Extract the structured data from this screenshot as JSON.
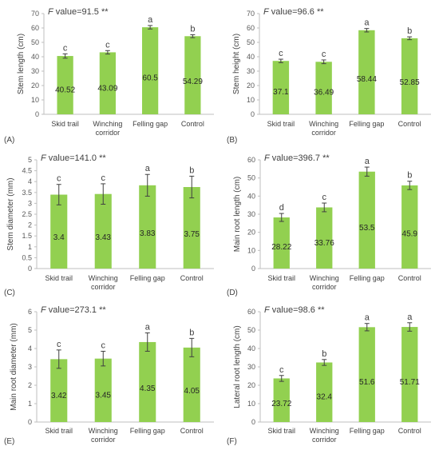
{
  "colors": {
    "bar": "#92D050",
    "axis": "#bfbfbf",
    "grid": "#d9d9d9",
    "error": "#404040"
  },
  "chart_data": [
    {
      "type": "bar",
      "panel": "(A)",
      "categories": [
        "Skid trail",
        "Winching corridor",
        "Felling gap",
        "Control"
      ],
      "values": [
        40.52,
        43.09,
        60.5,
        54.29
      ],
      "value_labels": [
        "40.52",
        "43.09",
        "60.5",
        "54.29"
      ],
      "errors": [
        1.5,
        1.2,
        1.2,
        1.0
      ],
      "significance": [
        "c",
        "c",
        "a",
        "b"
      ],
      "f_label": "F",
      "f_text": " value=91.5 **",
      "ylabel": "Stem length (cm)",
      "ylim": [
        0,
        70
      ],
      "yticks": [
        0,
        10,
        20,
        30,
        40,
        50,
        60,
        70
      ],
      "grid": false
    },
    {
      "type": "bar",
      "panel": "(B)",
      "categories": [
        "Skid trail",
        "Winching corridor",
        "Felling gap",
        "Control"
      ],
      "values": [
        37.1,
        36.49,
        58.44,
        52.85
      ],
      "value_labels": [
        "37.1",
        "36.49",
        "58.44",
        "52.85"
      ],
      "errors": [
        1.2,
        1.3,
        1.2,
        1.0
      ],
      "significance": [
        "c",
        "c",
        "a",
        "b"
      ],
      "f_label": "F",
      "f_text": " value=96.6 **",
      "ylabel": "Stem height (cm)",
      "ylim": [
        0,
        70
      ],
      "yticks": [
        0,
        10,
        20,
        30,
        40,
        50,
        60,
        70
      ],
      "grid": false
    },
    {
      "type": "bar",
      "panel": "(C)",
      "categories": [
        "Skid trail",
        "Winching corridor",
        "Felling gap",
        "Control"
      ],
      "values": [
        3.4,
        3.43,
        3.83,
        3.75
      ],
      "value_labels": [
        "3.4",
        "3.43",
        "3.83",
        "3.75"
      ],
      "errors": [
        0.47,
        0.47,
        0.5,
        0.5
      ],
      "significance": [
        "c",
        "c",
        "a",
        "b"
      ],
      "f_label": "F",
      "f_text": " value=141.0 **",
      "ylabel": "Stem diameter (mm)",
      "ylim": [
        0,
        5
      ],
      "yticks": [
        0,
        0.5,
        1,
        1.5,
        2,
        2.5,
        3,
        3.5,
        4,
        4.5,
        5
      ],
      "grid": false
    },
    {
      "type": "bar",
      "panel": "(D)",
      "categories": [
        "Skid trail",
        "Winching corridor",
        "Felling gap",
        "Control"
      ],
      "values": [
        28.22,
        33.76,
        53.5,
        45.9
      ],
      "value_labels": [
        "28.22",
        "33.76",
        "53.5",
        "45.9"
      ],
      "errors": [
        2.2,
        2.4,
        2.5,
        2.3
      ],
      "significance": [
        "d",
        "c",
        "a",
        "b"
      ],
      "f_label": "F",
      "f_text": " value=396.7 **",
      "ylabel": "Main root length (cm)",
      "ylim": [
        0,
        60
      ],
      "yticks": [
        0,
        10,
        20,
        30,
        40,
        50,
        60
      ],
      "grid": false
    },
    {
      "type": "bar",
      "panel": "(E)",
      "categories": [
        "Skid trail",
        "Winching corridor",
        "Felling gap",
        "Control"
      ],
      "values": [
        3.42,
        3.45,
        4.35,
        4.05
      ],
      "value_labels": [
        "3.42",
        "3.45",
        "4.35",
        "4.05"
      ],
      "errors": [
        0.5,
        0.4,
        0.5,
        0.5
      ],
      "significance": [
        "c",
        "c",
        "a",
        "b"
      ],
      "f_label": "F",
      "f_text": " value=273.1 **",
      "ylabel": "Main root diameter (mm)",
      "ylim": [
        0,
        6
      ],
      "yticks": [
        0,
        1,
        2,
        3,
        4,
        5,
        6
      ],
      "grid": false
    },
    {
      "type": "bar",
      "panel": "(F)",
      "categories": [
        "Skid trail",
        "Winching corridor",
        "Felling gap",
        "Control"
      ],
      "values": [
        23.72,
        32.4,
        51.6,
        51.71
      ],
      "value_labels": [
        "23.72",
        "32.4",
        "51.6",
        "51.71"
      ],
      "errors": [
        1.6,
        1.6,
        2.0,
        2.3
      ],
      "significance": [
        "c",
        "b",
        "a",
        "a"
      ],
      "f_label": "F",
      "f_text": " value=98.6 **",
      "ylabel": "Lateral root length (cm)",
      "ylim": [
        0,
        60
      ],
      "yticks": [
        0,
        10,
        20,
        30,
        40,
        50,
        60
      ],
      "grid": false
    }
  ]
}
